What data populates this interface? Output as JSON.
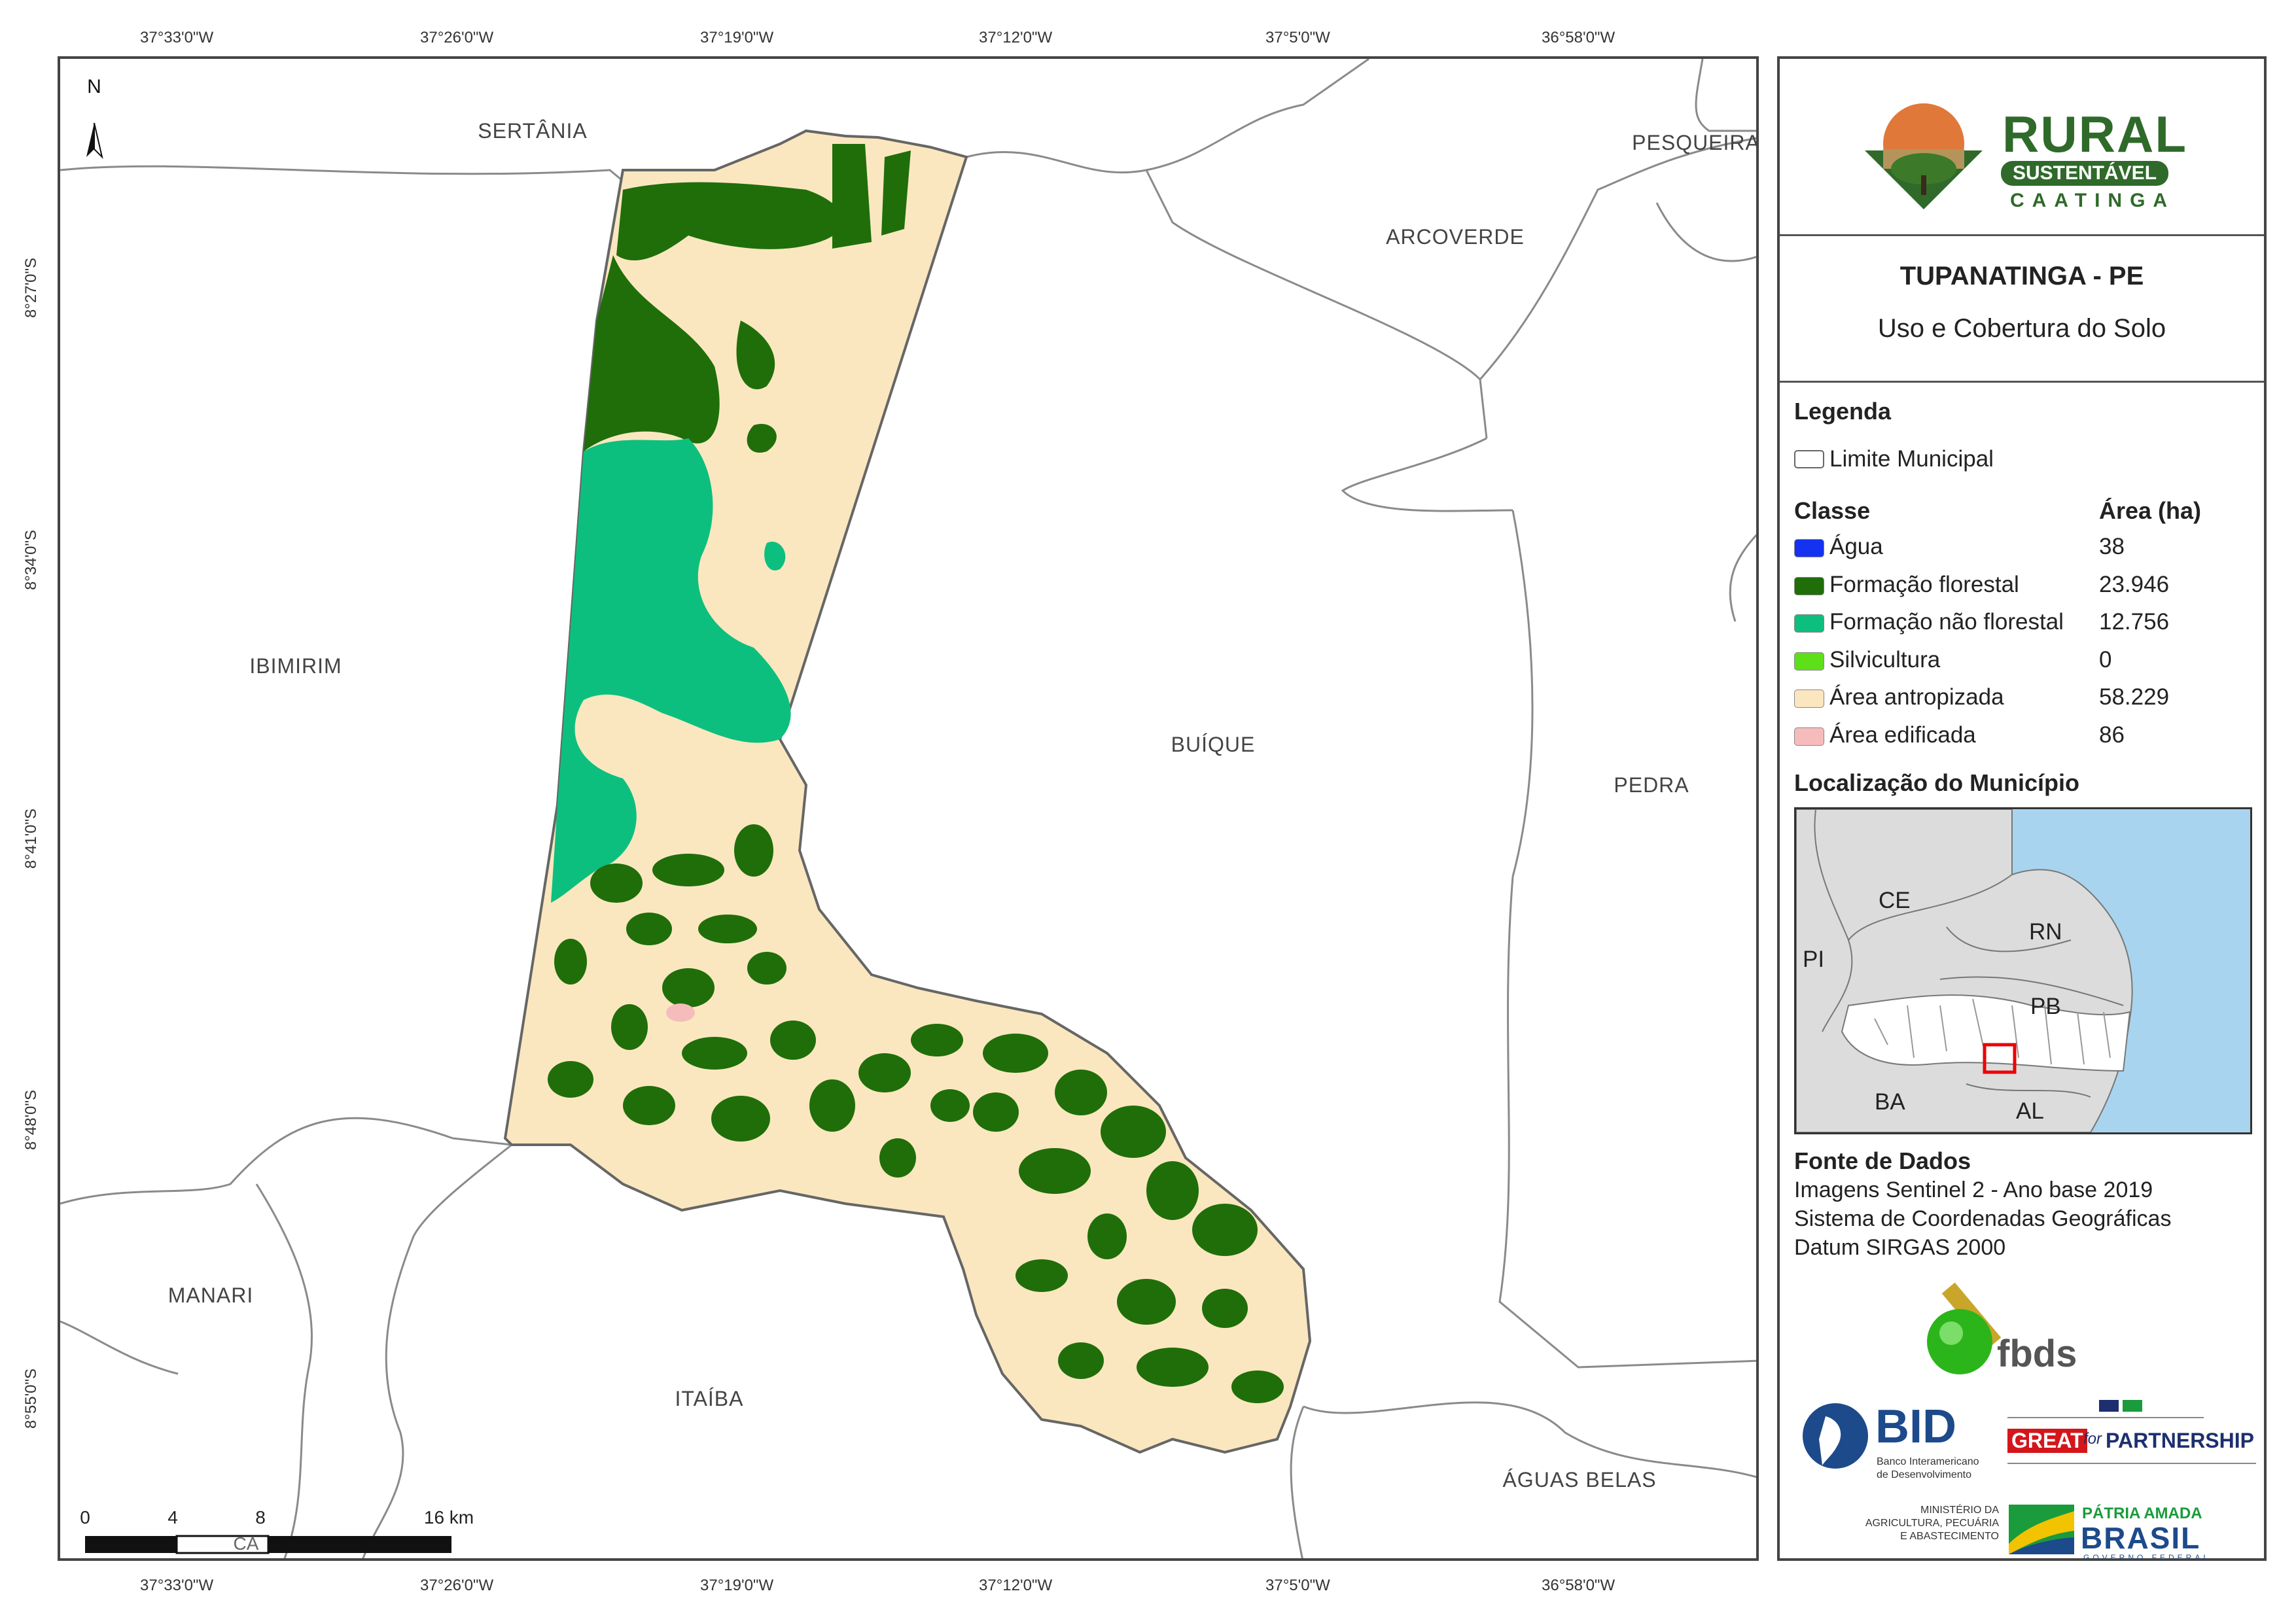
{
  "map": {
    "top_coords": [
      "37°33'0\"W",
      "37°26'0\"W",
      "37°19'0\"W",
      "37°12'0\"W",
      "37°5'0\"W",
      "36°58'0\"W"
    ],
    "bottom_coords": [
      "37°33'0\"W",
      "37°26'0\"W",
      "37°19'0\"W",
      "37°12'0\"W",
      "37°5'0\"W",
      "36°58'0\"W"
    ],
    "left_coords": [
      "8°27'0\"S",
      "8°34'0\"S",
      "8°41'0\"S",
      "8°48'0\"S",
      "8°55'0\"S"
    ],
    "north_label": "N",
    "municipalities": {
      "sertania": "SERTÂNIA",
      "pesqueira": "PESQUEIRA",
      "arcoverde": "ARCOVERDE",
      "ibimirim": "IBIMIRIM",
      "buique": "BUÍQUE",
      "pedra": "PEDRA",
      "manari": "MANARI",
      "itaiba": "ITAÍBA",
      "aguas_belas": "ÁGUAS BELAS"
    },
    "scale_bar": {
      "labels": [
        "0",
        "4",
        "8",
        "16 km"
      ],
      "stray_text": "CA"
    }
  },
  "panel": {
    "logo": {
      "line1": "RURAL",
      "line2": "SUSTENTÁVEL",
      "line3": "CAATINGA"
    },
    "title": "TUPANATINGA - PE",
    "subtitle": "Uso e Cobertura do Solo",
    "legend_title": "Legenda",
    "limit_label": "Limite Municipal",
    "class_header": "Classe",
    "area_header": "Área (ha)",
    "classes": [
      {
        "label": "Água",
        "area": "38",
        "color": "#1432f0"
      },
      {
        "label": "Formação florestal",
        "area": "23.946",
        "color": "#1f6e0a"
      },
      {
        "label": "Formação não florestal",
        "area": "12.756",
        "color": "#0dbf7f"
      },
      {
        "label": "Silvicultura",
        "area": "0",
        "color": "#5de01a"
      },
      {
        "label": "Área antropizada",
        "area": "58.229",
        "color": "#fae7bf"
      },
      {
        "label": "Área edificada",
        "area": "86",
        "color": "#f6bcbc"
      }
    ],
    "location_title": "Localização do Município",
    "inset_labels": {
      "ce": "CE",
      "rn": "RN",
      "pi": "PI",
      "pb": "PB",
      "ba": "BA",
      "al": "AL"
    },
    "source_title": "Fonte de Dados",
    "source_lines": [
      "Imagens Sentinel 2 - Ano base 2019",
      "Sistema de Coordenadas Geográficas",
      "Datum SIRGAS 2000"
    ],
    "partners": {
      "fbds": "fbds",
      "bid": "BID",
      "bid_sub1": "Banco Interamericano",
      "bid_sub2": "de Desenvolvimento",
      "great": "GREAT",
      "for": "for",
      "partnership": "PARTNERSHIP",
      "ministry1": "MINISTÉRIO DA",
      "ministry2": "AGRICULTURA, PECUÁRIA",
      "ministry3": "E ABASTECIMENTO",
      "patria": "PÁTRIA AMADA",
      "brasil": "BRASIL",
      "gov": "GOVERNO FEDERAL"
    }
  }
}
